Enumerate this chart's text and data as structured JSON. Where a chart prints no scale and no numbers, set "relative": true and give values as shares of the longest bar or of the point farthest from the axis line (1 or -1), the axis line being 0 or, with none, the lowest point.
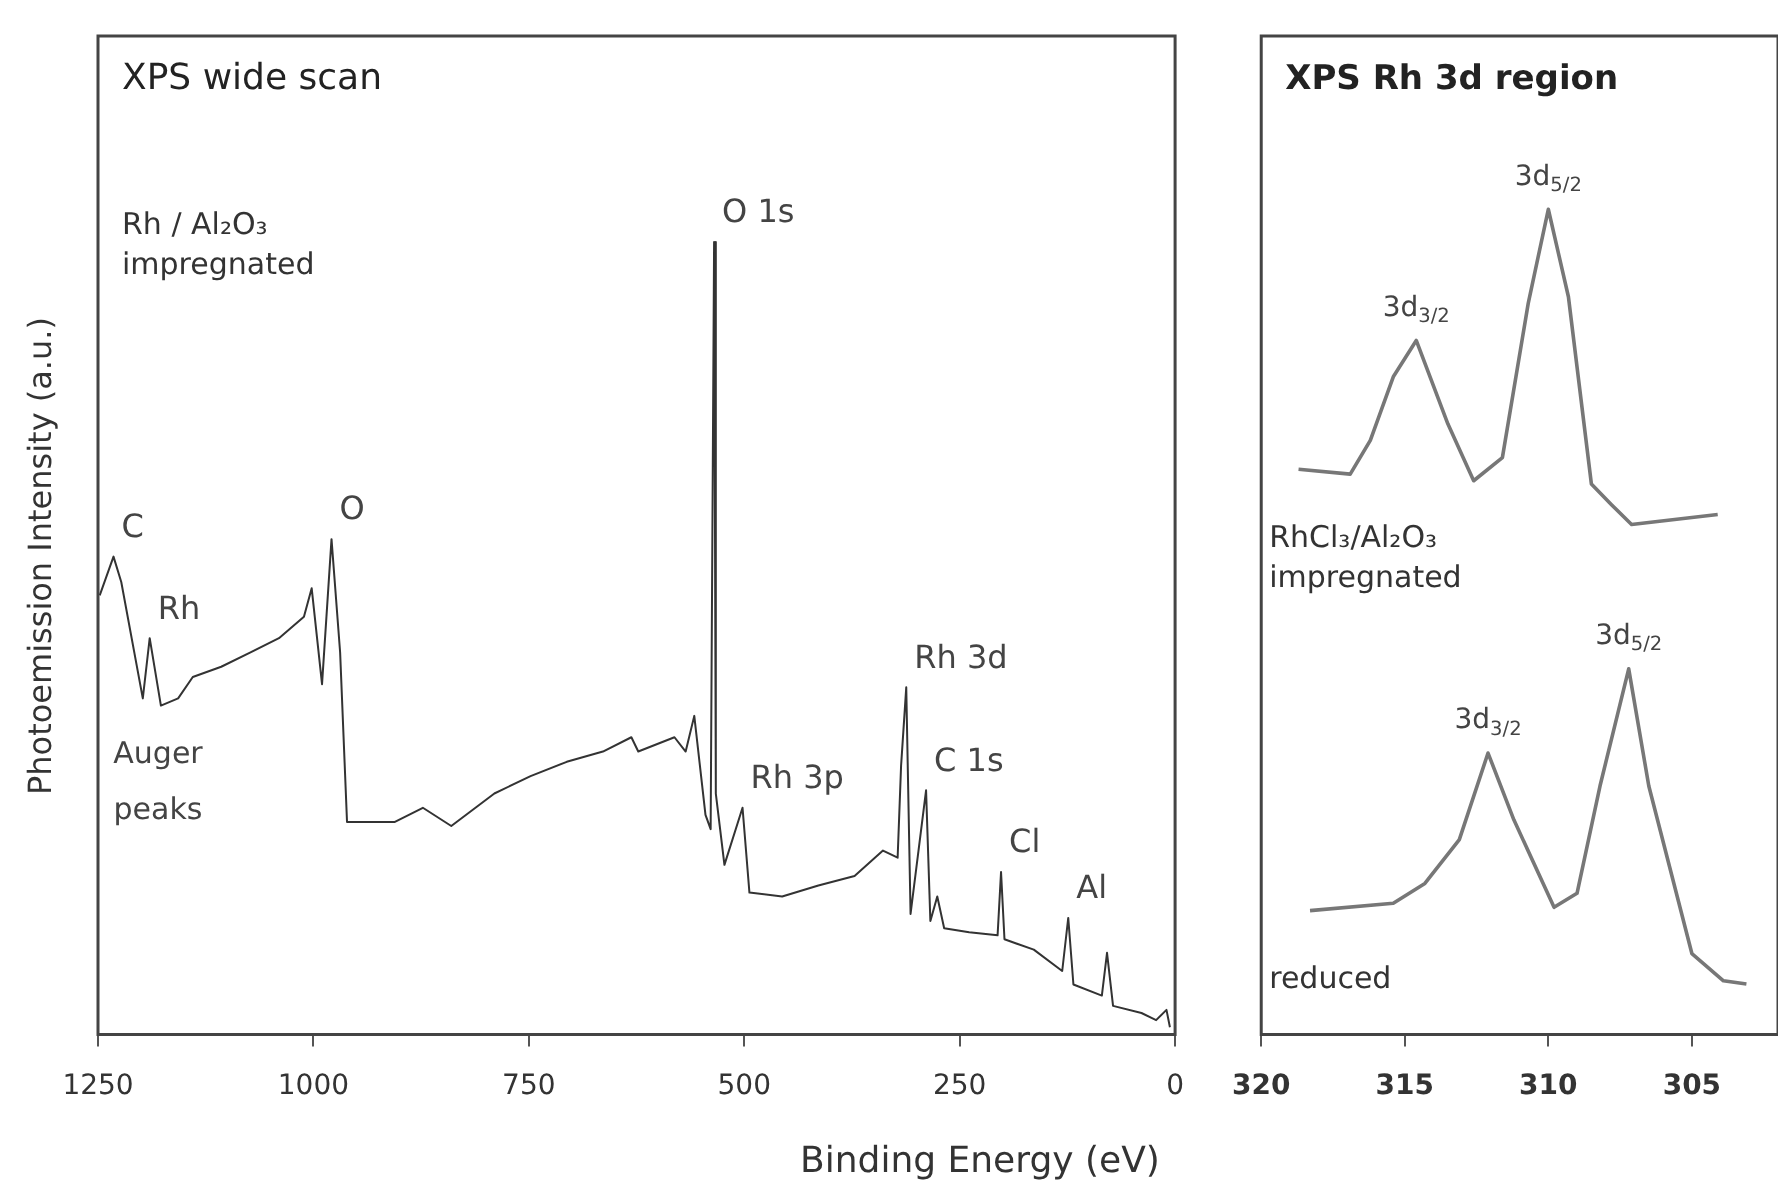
{
  "chart_data": [
    {
      "type": "line",
      "title": "XPS wide scan",
      "xlabel": "Binding Energy (eV)",
      "ylabel": "Photoemission Intensity (a.u.)",
      "relative": true,
      "xlim": [
        1250,
        0
      ],
      "xticks": [
        1250,
        1000,
        750,
        500,
        250,
        0
      ],
      "grid": false,
      "legend": false,
      "marker": "none",
      "line_style": "solid",
      "series": [
        {
          "name": "Rh / Al₂O₃ impregnated",
          "color": "#333333",
          "x": [
            1248,
            1232,
            1223,
            1198,
            1190,
            1177,
            1157,
            1140,
            1107,
            1073,
            1040,
            1011,
            1002,
            990,
            979,
            969,
            961,
            940,
            906,
            873,
            840,
            790,
            748,
            706,
            664,
            631,
            623,
            581,
            568,
            558,
            545,
            539,
            535,
            533,
            523,
            502,
            494,
            456,
            414,
            372,
            339,
            322,
            318,
            312,
            307,
            289,
            284,
            276,
            268,
            239,
            206,
            202,
            198,
            164,
            131,
            124,
            118,
            85,
            79,
            72,
            39,
            22,
            10,
            6
          ],
          "values": [
            0.554,
            0.603,
            0.571,
            0.424,
            0.5,
            0.415,
            0.424,
            0.451,
            0.464,
            0.482,
            0.5,
            0.527,
            0.563,
            0.442,
            0.625,
            0.482,
            0.268,
            0.268,
            0.268,
            0.286,
            0.263,
            0.304,
            0.326,
            0.344,
            0.357,
            0.375,
            0.357,
            0.375,
            0.357,
            0.402,
            0.277,
            0.259,
            1.0,
            0.304,
            0.214,
            0.286,
            0.179,
            0.174,
            0.188,
            0.2,
            0.232,
            0.223,
            0.339,
            0.438,
            0.152,
            0.308,
            0.143,
            0.174,
            0.134,
            0.129,
            0.125,
            0.205,
            0.12,
            0.107,
            0.08,
            0.147,
            0.063,
            0.049,
            0.103,
            0.036,
            0.027,
            0.018,
            0.031,
            0.009
          ]
        }
      ],
      "annotations": [
        {
          "text": "O 1s",
          "x": 535,
          "y": 1.0
        },
        {
          "text": "C",
          "x": 1232,
          "y": 0.603
        },
        {
          "text": "Rh",
          "x": 1190,
          "y": 0.5
        },
        {
          "text": "O",
          "x": 979,
          "y": 0.625
        },
        "Auger peaks",
        {
          "text": "Rh 3d",
          "x": 312,
          "y": 0.438
        },
        {
          "text": "Rh 3p",
          "x": 502,
          "y": 0.286
        },
        {
          "text": "C 1s",
          "x": 289,
          "y": 0.308
        },
        {
          "text": "Cl",
          "x": 202,
          "y": 0.205
        },
        {
          "text": "Al",
          "x": 124,
          "y": 0.147
        }
      ]
    },
    {
      "type": "line",
      "title": "XPS Rh 3d region",
      "relative": true,
      "xlim": [
        320,
        302
      ],
      "xticks": [
        320,
        315,
        310,
        305
      ],
      "grid": false,
      "legend": false,
      "marker": "none",
      "line_style": "solid",
      "series": [
        {
          "name": "RhCl₃/Al₂O₃ impregnated",
          "color": "#777777",
          "x": [
            318.7,
            316.9,
            316.2,
            315.4,
            314.6,
            313.5,
            312.6,
            311.6,
            310.7,
            310.0,
            309.3,
            308.5,
            307.8,
            307.1,
            304.1
          ],
          "values": [
            0.685,
            0.679,
            0.72,
            0.797,
            0.841,
            0.74,
            0.671,
            0.699,
            0.886,
            1.0,
            0.894,
            0.667,
            0.642,
            0.618,
            0.63
          ]
        },
        {
          "name": "reduced",
          "color": "#777777",
          "x": [
            318.3,
            315.4,
            314.3,
            313.1,
            312.1,
            311.2,
            309.8,
            309.0,
            308.2,
            307.2,
            306.5,
            305.0,
            303.9,
            303.1
          ],
          "values": [
            0.15,
            0.159,
            0.183,
            0.236,
            0.341,
            0.26,
            0.154,
            0.171,
            0.301,
            0.443,
            0.301,
            0.098,
            0.065,
            0.061
          ]
        }
      ],
      "annotations": [
        {
          "text": "3d$_{5/2}$",
          "x": 310.0,
          "y": 1.0
        },
        {
          "text": "3d$_{3/2}$",
          "x": 314.6,
          "y": 0.841
        },
        {
          "text": "3d$_{3/2}$",
          "x": 312.1,
          "y": 0.341
        },
        {
          "text": "3d$_{5/2}$",
          "x": 307.2,
          "y": 0.443
        }
      ]
    }
  ]
}
